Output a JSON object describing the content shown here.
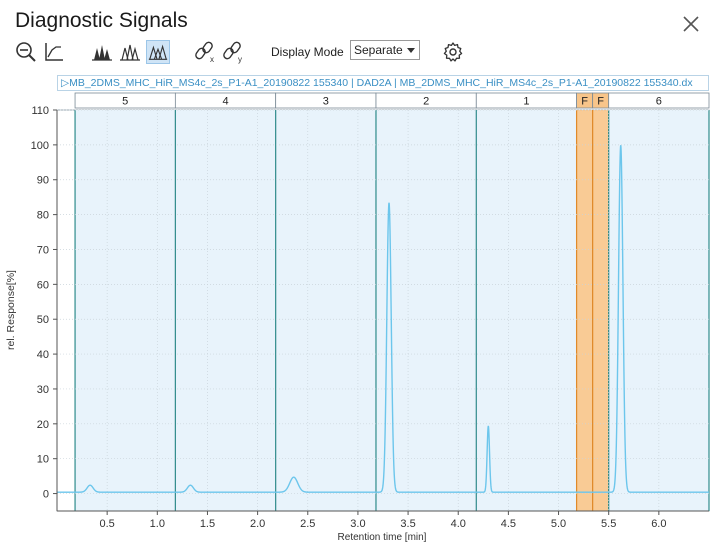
{
  "window": {
    "title": "Diagnostic Signals"
  },
  "toolbar": {
    "display_mode_label": "Display Mode",
    "display_mode_value": "Separate",
    "icons": [
      "zoom-out-icon",
      "axis-scale-icon",
      "peaks-filled-icon",
      "peaks-outline-icon",
      "peaks-overlay-icon",
      "unlink-x-icon",
      "unlink-y-icon",
      "settings-gear-icon"
    ]
  },
  "file_label": "▷MB_2DMS_MHC_HiR_MS4c_2s_P1-A1_20190822 155340 | DAD2A | MB_2DMS_MHC_HiR_MS4c_2s_P1-A1_20190822 155340.dx",
  "colors": {
    "signal": "#6cc6ec",
    "segment_fill": "#e8f3fb",
    "segment_border": "#2e8b8b",
    "fraction_fill": "#f8c58a",
    "fraction_border": "#e08a2a"
  },
  "chart_data": {
    "type": "line",
    "xlabel": "Retention time [min]",
    "ylabel": "rel. Response[%]",
    "xlim": [
      0.0,
      6.5
    ],
    "ylim": [
      -5,
      110
    ],
    "x_ticks": [
      "0.5",
      "1.0",
      "1.5",
      "2.0",
      "2.5",
      "3.0",
      "3.5",
      "4.0",
      "4.5",
      "5.0",
      "5.5",
      "6.0"
    ],
    "x_tick_values": [
      0.5,
      1.0,
      1.5,
      2.0,
      2.5,
      3.0,
      3.5,
      4.0,
      4.5,
      5.0,
      5.5,
      6.0
    ],
    "y_ticks": [
      0,
      10,
      20,
      30,
      40,
      50,
      60,
      70,
      80,
      90,
      100,
      110
    ],
    "grid": true,
    "segments": [
      {
        "label": "5",
        "start": 0.18,
        "end": 1.18,
        "kind": "segment"
      },
      {
        "label": "4",
        "start": 1.18,
        "end": 2.18,
        "kind": "segment"
      },
      {
        "label": "3",
        "start": 2.18,
        "end": 3.18,
        "kind": "segment"
      },
      {
        "label": "2",
        "start": 3.18,
        "end": 4.18,
        "kind": "segment"
      },
      {
        "label": "1",
        "start": 4.18,
        "end": 5.18,
        "kind": "segment"
      },
      {
        "label": "F",
        "start": 5.18,
        "end": 5.34,
        "kind": "fraction"
      },
      {
        "label": "F",
        "start": 5.34,
        "end": 5.5,
        "kind": "fraction"
      },
      {
        "label": "6",
        "start": 5.5,
        "end": 6.5,
        "kind": "segment"
      }
    ],
    "peaks": [
      {
        "x": 0.33,
        "height": 2.0,
        "width": 0.03
      },
      {
        "x": 1.33,
        "height": 2.0,
        "width": 0.03
      },
      {
        "x": 2.36,
        "height": 4.3,
        "width": 0.04
      },
      {
        "x": 3.31,
        "height": 83.0,
        "width": 0.022
      },
      {
        "x": 4.3,
        "height": 19.0,
        "width": 0.012
      },
      {
        "x": 5.62,
        "height": 99.5,
        "width": 0.022
      }
    ],
    "baseline": 0.4
  }
}
